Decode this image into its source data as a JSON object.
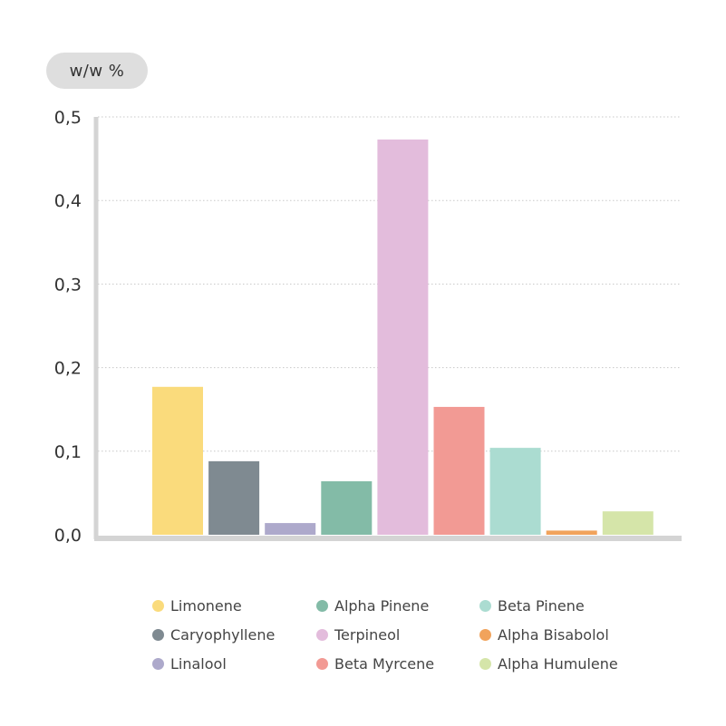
{
  "unit_label": "w/w %",
  "chart_data": {
    "type": "bar",
    "categories": [
      "Limonene",
      "Caryophyllene",
      "Linalool",
      "Alpha Pinene",
      "Terpineol",
      "Beta Myrcene",
      "Beta Pinene",
      "Alpha Bisabolol",
      "Alpha Humulene"
    ],
    "values": [
      0.177,
      0.088,
      0.014,
      0.064,
      0.473,
      0.153,
      0.104,
      0.005,
      0.028
    ],
    "colors": [
      "#fadb7c",
      "#7f8a91",
      "#ada9cb",
      "#83bba7",
      "#e3bcdc",
      "#f29a94",
      "#abdcd1",
      "#f1a35c",
      "#d5e5a9"
    ],
    "ylim": [
      0,
      0.5
    ],
    "yticks": [
      "0,0",
      "0,1",
      "0,2",
      "0,3",
      "0,4",
      "0,5"
    ],
    "ylabel": "w/w %",
    "title": "",
    "xlabel": "",
    "grid": "horizontal dotted",
    "legend_placement": "bottom"
  },
  "legend": [
    {
      "label": "Limonene",
      "color": "#fadb7c"
    },
    {
      "label": "Caryophyllene",
      "color": "#7f8a91"
    },
    {
      "label": "Linalool",
      "color": "#ada9cb"
    },
    {
      "label": "Alpha Pinene",
      "color": "#83bba7"
    },
    {
      "label": "Terpineol",
      "color": "#e3bcdc"
    },
    {
      "label": "Beta Myrcene",
      "color": "#f29a94"
    },
    {
      "label": "Beta Pinene",
      "color": "#abdcd1"
    },
    {
      "label": "Alpha Bisabolol",
      "color": "#f1a35c"
    },
    {
      "label": "Alpha Humulene",
      "color": "#d5e5a9"
    }
  ],
  "colors": {
    "axis": "#d4d4d4",
    "grid": "#c8c8c8",
    "pill": "#dedede"
  }
}
